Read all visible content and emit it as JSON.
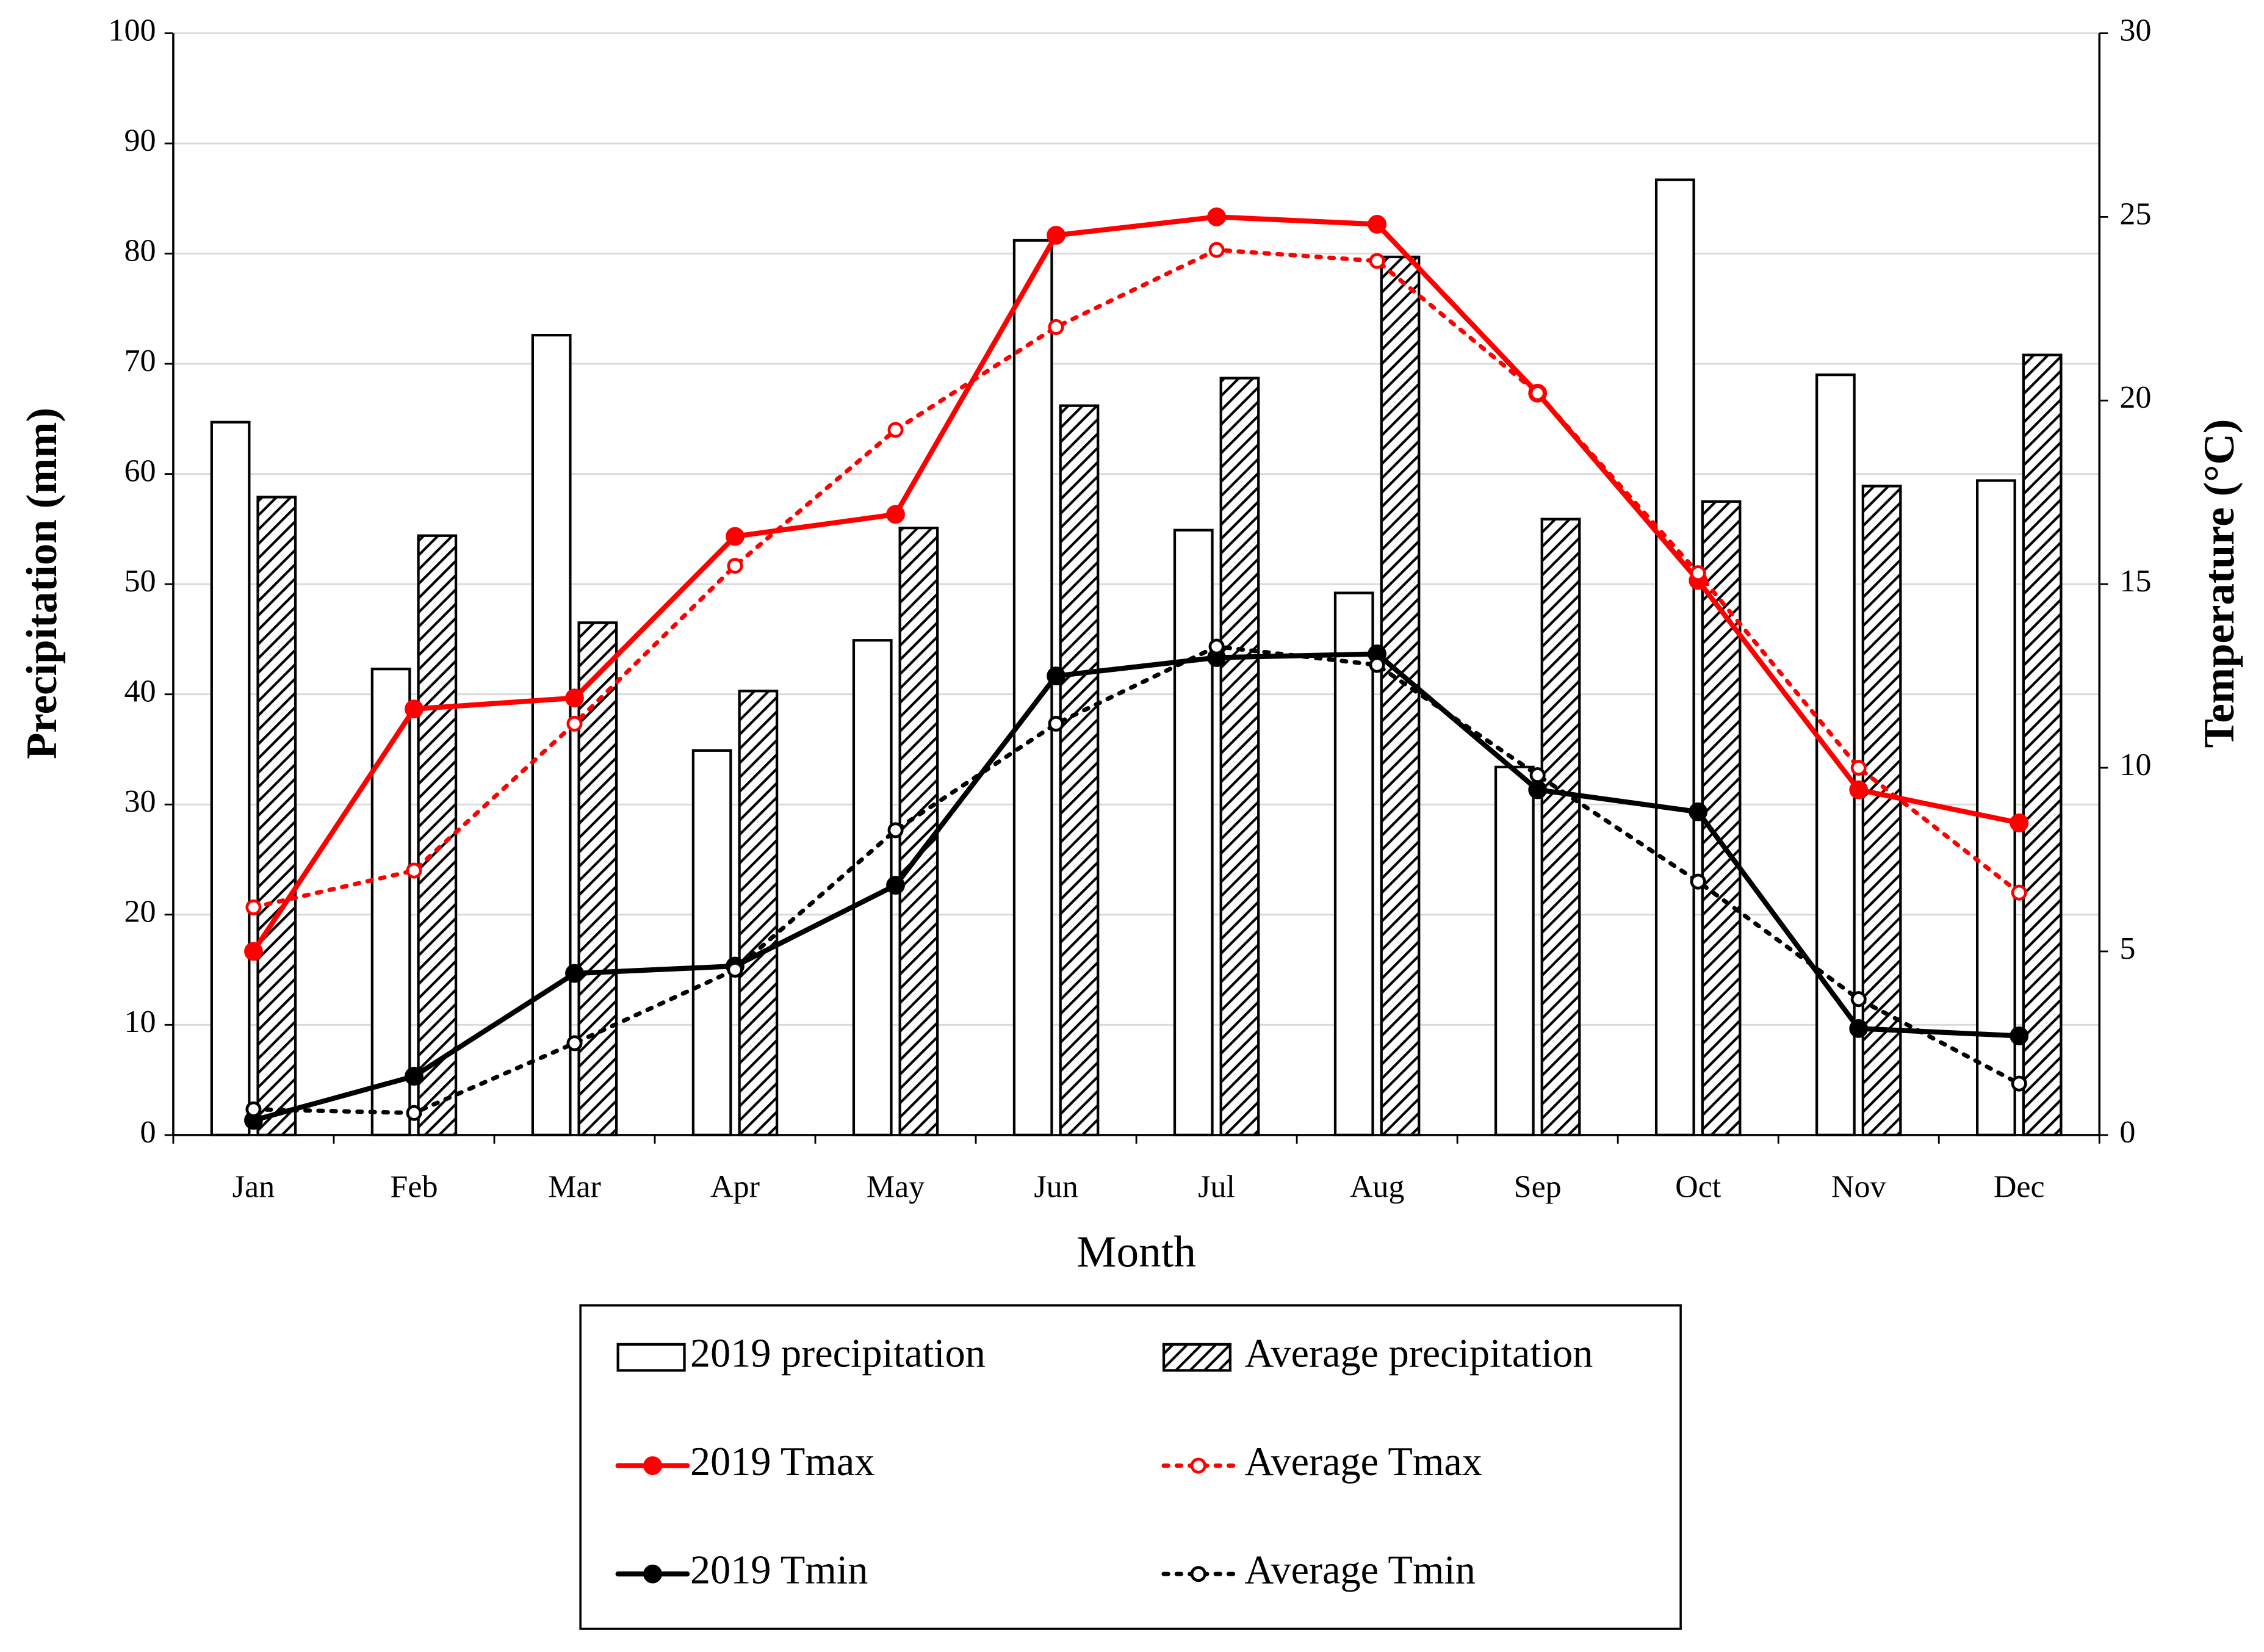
{
  "chart_data": {
    "type": "bar",
    "x_label": "Month",
    "y_label": "Precipitation (mm)",
    "y2_label": "Temperature (°C)",
    "categories": [
      "Jan",
      "Feb",
      "Mar",
      "Apr",
      "May",
      "Jun",
      "Jul",
      "Aug",
      "Sep",
      "Oct",
      "Nov",
      "Dec"
    ],
    "ylim": [
      0,
      100
    ],
    "yticks": [
      0,
      10,
      20,
      30,
      40,
      50,
      60,
      70,
      80,
      90,
      100
    ],
    "y2lim": [
      0,
      30
    ],
    "y2ticks": [
      0,
      5,
      10,
      15,
      20,
      25,
      30
    ],
    "grid": true,
    "legend": "bottom",
    "series": [
      {
        "name": "2019 precipitation",
        "type": "bar",
        "color": "#000000",
        "pattern": "none",
        "values": [
          64.7,
          42.3,
          72.6,
          34.9,
          44.9,
          81.2,
          54.9,
          49.2,
          33.4,
          86.7,
          69.0,
          59.4
        ]
      },
      {
        "name": "Average precipitation",
        "type": "bar",
        "color": "#000000",
        "pattern": "hatch",
        "values": [
          57.9,
          54.4,
          46.5,
          40.3,
          55.1,
          66.2,
          68.7,
          79.7,
          55.9,
          57.5,
          58.9,
          70.8
        ]
      },
      {
        "name": "2019 Tmax",
        "type": "line",
        "axis": "y2",
        "color": "#ff0000",
        "dash": "solid",
        "marker": "filled",
        "values": [
          5.0,
          11.6,
          11.9,
          16.3,
          16.9,
          24.5,
          25.0,
          24.8,
          20.2,
          15.1,
          9.4,
          8.5
        ]
      },
      {
        "name": "Average Tmax",
        "type": "line",
        "axis": "y2",
        "color": "#ff0000",
        "dash": "dotted",
        "marker": "open",
        "values": [
          6.2,
          7.2,
          11.2,
          15.5,
          19.2,
          22.0,
          24.1,
          23.8,
          20.2,
          15.3,
          10.0,
          6.6
        ]
      },
      {
        "name": "2019 Tmin",
        "type": "line",
        "axis": "y2",
        "color": "#000000",
        "dash": "solid",
        "marker": "filled",
        "values": [
          0.4,
          1.6,
          4.4,
          4.6,
          6.8,
          12.5,
          13.0,
          13.1,
          9.4,
          8.8,
          2.9,
          2.7
        ]
      },
      {
        "name": "Average Tmin",
        "type": "line",
        "axis": "y2",
        "color": "#000000",
        "dash": "dotted",
        "marker": "open",
        "values": [
          0.7,
          0.6,
          2.5,
          4.5,
          8.3,
          11.2,
          13.3,
          12.8,
          9.8,
          6.9,
          3.7,
          1.4
        ]
      }
    ]
  }
}
